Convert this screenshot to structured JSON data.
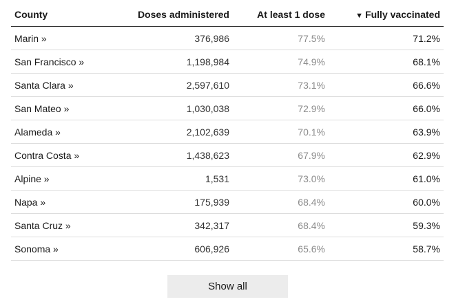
{
  "table": {
    "headers": {
      "county": "County",
      "doses": "Doses administered",
      "first_dose": "At least 1 dose",
      "fully_arrow": "▼",
      "fully": "Fully vaccinated"
    },
    "rows": [
      {
        "county": "Marin »",
        "doses": "376,986",
        "first_dose": "77.5%",
        "fully": "71.2%"
      },
      {
        "county": "San Francisco »",
        "doses": "1,198,984",
        "first_dose": "74.9%",
        "fully": "68.1%"
      },
      {
        "county": "Santa Clara »",
        "doses": "2,597,610",
        "first_dose": "73.1%",
        "fully": "66.6%"
      },
      {
        "county": "San Mateo »",
        "doses": "1,030,038",
        "first_dose": "72.9%",
        "fully": "66.0%"
      },
      {
        "county": "Alameda »",
        "doses": "2,102,639",
        "first_dose": "70.1%",
        "fully": "63.9%"
      },
      {
        "county": "Contra Costa »",
        "doses": "1,438,623",
        "first_dose": "67.9%",
        "fully": "62.9%"
      },
      {
        "county": "Alpine »",
        "doses": "1,531",
        "first_dose": "73.0%",
        "fully": "61.0%"
      },
      {
        "county": "Napa »",
        "doses": "175,939",
        "first_dose": "68.4%",
        "fully": "60.0%"
      },
      {
        "county": "Santa Cruz »",
        "doses": "342,317",
        "first_dose": "68.4%",
        "fully": "59.3%"
      },
      {
        "county": "Sonoma »",
        "doses": "606,926",
        "first_dose": "65.6%",
        "fully": "58.7%"
      }
    ]
  },
  "show_all_label": "Show all"
}
